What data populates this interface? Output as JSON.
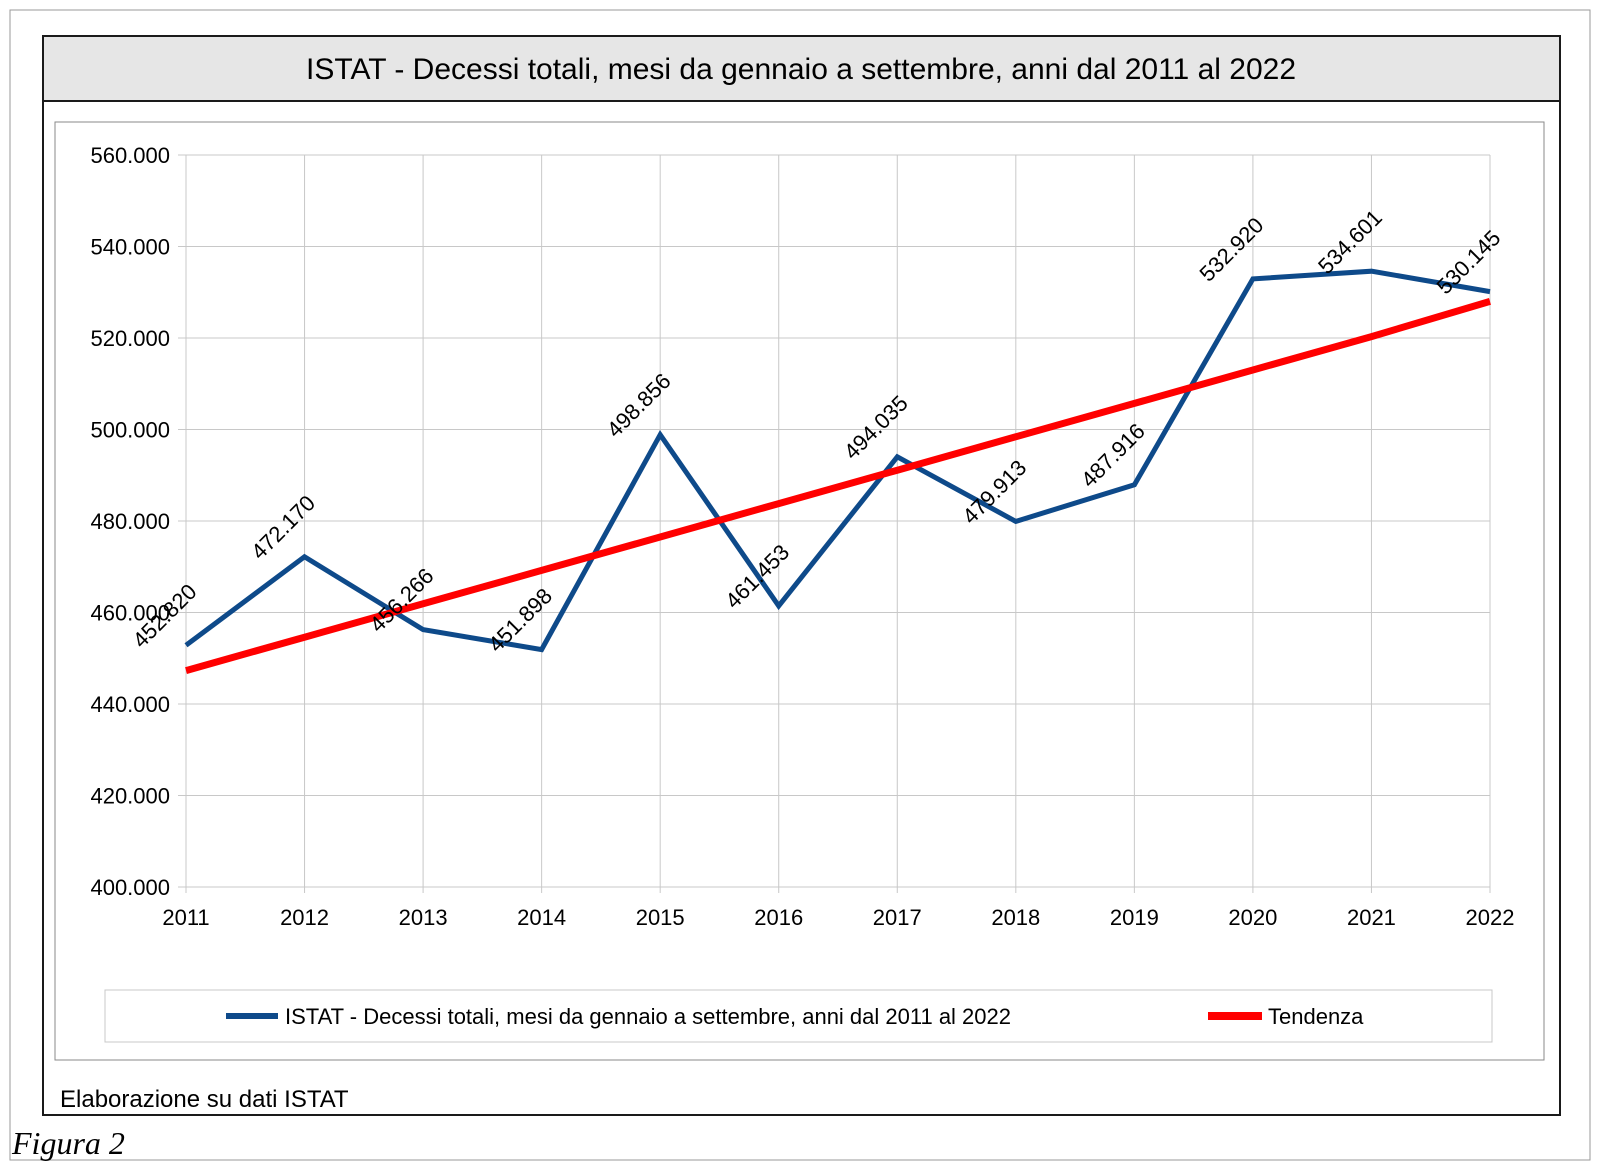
{
  "chart_data": {
    "type": "line",
    "title": "ISTAT - Decessi totali, mesi da gennaio a settembre, anni dal 2011 al 2022",
    "xlabel": "",
    "ylabel": "",
    "categories": [
      "2011",
      "2012",
      "2013",
      "2014",
      "2015",
      "2016",
      "2017",
      "2018",
      "2019",
      "2020",
      "2021",
      "2022"
    ],
    "y_ticks": [
      "400.000",
      "420.000",
      "440.000",
      "460.000",
      "480.000",
      "500.000",
      "520.000",
      "540.000",
      "560.000"
    ],
    "ylim": [
      400000,
      560000
    ],
    "grid": true,
    "legend_position": "bottom",
    "series": [
      {
        "name": "ISTAT - Decessi totali, mesi da gennaio a settembre, anni dal 2011 al 2022",
        "color": "#0e4a8a",
        "values": [
          452820,
          472170,
          456266,
          451898,
          498856,
          461453,
          494035,
          479913,
          487916,
          532920,
          534601,
          530145
        ],
        "labels": [
          "452.820",
          "472.170",
          "456.266",
          "451.898",
          "498.856",
          "461.453",
          "494.035",
          "479.913",
          "487.916",
          "532.920",
          "534.601",
          "530.145"
        ]
      },
      {
        "name": "Tendenza",
        "color": "#ff0000",
        "values": [
          447300,
          454600,
          461900,
          469200,
          476500,
          483800,
          491100,
          498400,
          505700,
          513000,
          520300,
          528000
        ]
      }
    ]
  },
  "footer": {
    "source": "Elaborazione su dati ISTAT",
    "figure": "Figura 2"
  }
}
